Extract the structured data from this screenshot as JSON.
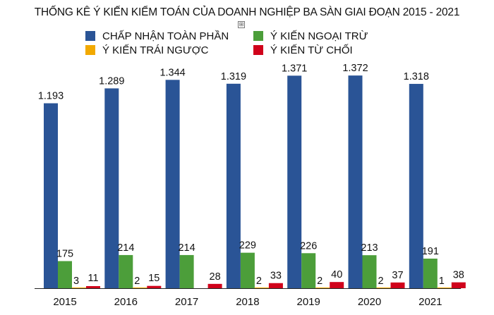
{
  "chart_data": {
    "type": "bar",
    "title": "THỐNG KÊ Ý KIẾN KIỂM TOÁN CỦA DOANH NGHIỆP BA SÀN GIAI ĐOẠN 2015 - 2021",
    "categories": [
      "2015",
      "2016",
      "2017",
      "2018",
      "2019",
      "2020",
      "2021"
    ],
    "series": [
      {
        "name": "CHẤP NHẬN TOÀN PHẦN",
        "color": "#2a5496",
        "values": [
          1193,
          1289,
          1344,
          1319,
          1371,
          1372,
          1318
        ],
        "labels": [
          "1.193",
          "1.289",
          "1.344",
          "1.319",
          "1.371",
          "1.372",
          "1.318"
        ]
      },
      {
        "name": "Ý KIẾN NGOẠI TRỪ",
        "color": "#4c9e3a",
        "values": [
          175,
          214,
          214,
          229,
          226,
          213,
          191
        ],
        "labels": [
          "175",
          "214",
          "214",
          "229",
          "226",
          "213",
          "191"
        ]
      },
      {
        "name": "Ý KIẾN TRÁI NGƯỢC",
        "color": "#f2a900",
        "values": [
          3,
          2,
          null,
          2,
          2,
          2,
          1
        ],
        "labels": [
          "3",
          "2",
          "",
          "2",
          "2",
          "2",
          "1"
        ]
      },
      {
        "name": "Ý KIẾN TỪ CHỐI",
        "color": "#d0021b",
        "values": [
          11,
          15,
          28,
          33,
          40,
          37,
          38
        ],
        "labels": [
          "11",
          "15",
          "28",
          "33",
          "40",
          "37",
          "38"
        ]
      }
    ],
    "legend_position": "top",
    "grid": false,
    "ylim": [
      0,
      1400
    ]
  },
  "ui": {
    "expand_icon": "⊞",
    "expand_icon_name": "expand-icon"
  }
}
